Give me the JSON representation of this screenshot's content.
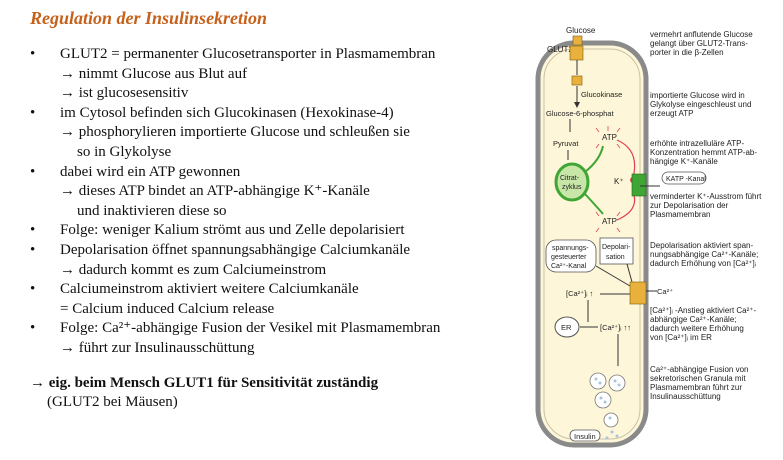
{
  "title": "Regulation der Insulinsekretion",
  "bullets": [
    {
      "lines": [
        "GLUT2 = permanenter Glucosetransporter in Plasmamembran",
        "→ nimmt Glucose aus Blut auf",
        "→ ist glucosesensitiv"
      ]
    },
    {
      "lines": [
        "im Cytosol befinden sich Glucokinasen (Hexokinase-4)",
        "→ phosphorylieren importierte Glucose und schleußen sie",
        "so in Glykolyse"
      ]
    },
    {
      "lines": [
        "dabei wird ein ATP gewonnen",
        "→ dieses ATP bindet an ATP-abhängige K⁺-Kanäle",
        "und inaktivieren diese so"
      ]
    },
    {
      "lines": [
        "Folge: weniger Kalium strömt aus und Zelle depolarisiert"
      ]
    },
    {
      "lines": [
        "Depolarisation öffnet spannungsabhängige Calciumkanäle",
        "→ dadurch kommt es zum Calciumeinstrom"
      ]
    },
    {
      "lines": [
        "Calciumeinstrom aktiviert weitere Calciumkanäle",
        "= Calcium induced Calcium release"
      ]
    },
    {
      "lines": [
        "Folge: Ca²⁺-abhängige Fusion der Vesikel mit Plasmamembran",
        "→ führt zur Insulinausschüttung"
      ]
    }
  ],
  "bullet_symbol": "•",
  "conclusion": {
    "strong": "→ eig. beim Mensch GLUT1 für Sensitivität zuständig",
    "sub": "(GLUT2 bei Mäusen)"
  },
  "diagram": {
    "labels": {
      "glucose": "Glucose",
      "glut2": "GLUT2",
      "glucokinase": "Glucokinase",
      "g6p": "Glucose-6-phosphat",
      "pyruvat": "Pyruvat",
      "atp1": "ATP",
      "citrat1": "Citrat-",
      "citrat2": "zyklus",
      "atp2": "ATP",
      "kplus": "K⁺",
      "katp": "KATP -Kanal",
      "depol1": "Depolari-",
      "depol2": "sation",
      "spann1": "spannungs-",
      "spann2": "gesteuerter",
      "spann3": "Ca²⁺-Kanal",
      "ca_out": "Ca²⁺",
      "ca_in1": "[Ca²⁺]ᵢ ↑",
      "er": "ER",
      "ca_in2": "[Ca²⁺]ᵢ ↑↑",
      "insulin": "Insulin"
    },
    "notes": [
      [
        "vermehrt anflutende Glucose",
        "gelangt über GLUT2-Trans-",
        "porter in die β-Zellen"
      ],
      [
        "importierte Glucose wird in",
        "Glykolyse eingeschleust und",
        "erzeugt ATP"
      ],
      [
        "erhöhte intrazelluläre ATP-",
        "Konzentration hemmt ATP-ab-",
        "hängige K⁺-Kanäle"
      ],
      [
        "verminderter K⁺-Ausstrom führt",
        "zur Depolarisation der",
        "Plasmamembran"
      ],
      [
        "Depolarisation aktiviert span-",
        "nungsabhängige Ca²⁺-Kanäle;",
        "dadurch Erhöhung von [Ca²⁺]ᵢ"
      ],
      [
        "[Ca²⁺]ᵢ -Anstieg aktiviert Ca²⁺-",
        "abhängige Ca²⁺-Kanäle;",
        "dadurch weitere Erhöhung",
        "von [Ca²⁺]ᵢ im ER"
      ],
      [
        "Ca²⁺-abhängige Fusion von",
        "sekretorischen Granula mit",
        "Plasmamembran führt zur",
        "Insulinausschüttung"
      ]
    ],
    "colors": {
      "cell_fill": "#fdf6d8",
      "membrane": "#8a8a8a",
      "channel": "#e9b13b",
      "green": "#3fa535",
      "red": "#e04050"
    }
  }
}
